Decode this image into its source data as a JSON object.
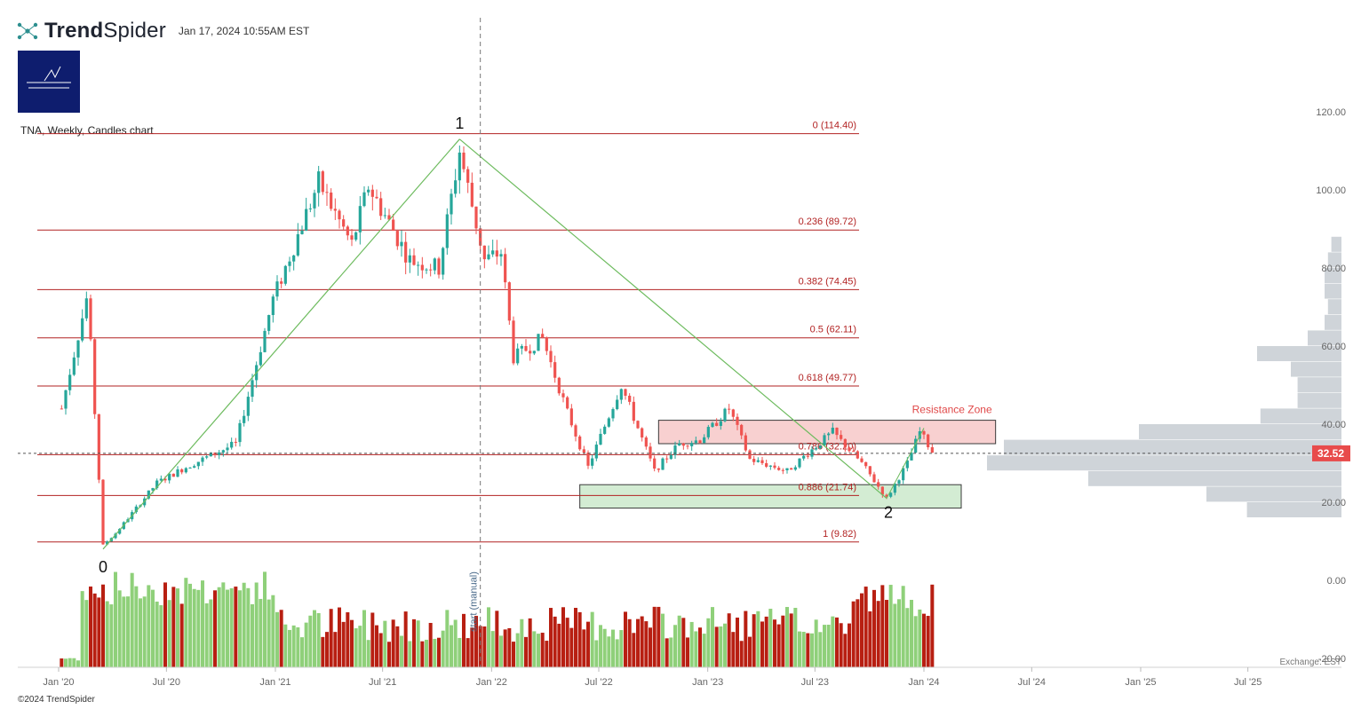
{
  "header": {
    "brand_primary": "Trend",
    "brand_secondary": "Spider",
    "timestamp": "Jan 17, 2024 10:55AM EST",
    "logo_icon": "network-dots-icon"
  },
  "badge": {
    "color": "#0e1d6e"
  },
  "copyright": "©2024 TrendSpider",
  "chart_data": {
    "type": "candlestick",
    "title": "TNA, Weekly, Candles chart",
    "symbol": "TNA",
    "interval": "Weekly",
    "y_axis": {
      "ticks": [
        "120.00",
        "100.00",
        "80.00",
        "60.00",
        "40.00",
        "20.00",
        "0.00",
        "-20.00"
      ],
      "range": [
        -20,
        127
      ]
    },
    "x_axis": {
      "ticks": [
        "Jan '20",
        "Jul '20",
        "Jan '21",
        "Jul '21",
        "Jan '22",
        "Jul '22",
        "Jan '23",
        "Jul '23",
        "Jan '24",
        "Jul '24",
        "Jan '25",
        "Jul '25"
      ]
    },
    "current_price": {
      "value": 32.52,
      "label": "32.52",
      "color": "#e84b4b"
    },
    "fib_levels": [
      {
        "ratio": "0",
        "price": 114.4,
        "label": "0 (114.40)"
      },
      {
        "ratio": "0.236",
        "price": 89.72,
        "label": "0.236 (89.72)"
      },
      {
        "ratio": "0.382",
        "price": 74.45,
        "label": "0.382 (74.45)"
      },
      {
        "ratio": "0.5",
        "price": 62.11,
        "label": "0.5 (62.11)"
      },
      {
        "ratio": "0.618",
        "price": 49.77,
        "label": "0.618 (49.77)"
      },
      {
        "ratio": "0.786",
        "price": 32.2,
        "label": "0.786 (32.20)"
      },
      {
        "ratio": "0.886",
        "price": 21.74,
        "label": "0.886 (21.74)"
      },
      {
        "ratio": "1",
        "price": 9.82,
        "label": "1 (9.82)"
      }
    ],
    "pivots": [
      {
        "label": "0",
        "date": "2020-03-16",
        "price": 8.0
      },
      {
        "label": "1",
        "date": "2021-11-08",
        "price": 113.0
      },
      {
        "label": "2",
        "date": "2023-10-30",
        "price": 21.0
      }
    ],
    "zones": [
      {
        "name": "Resistance Zone",
        "label": "Resistance Zone",
        "from": "2022-10-10",
        "to": "2024-05-01",
        "low": 35,
        "high": 41,
        "color": "#f8d0d0"
      },
      {
        "name": "support",
        "label": "",
        "from": "2022-05-30",
        "to": "2024-03-04",
        "low": 18.5,
        "high": 24.5,
        "color": "#d3ecd3"
      }
    ],
    "vertical_marker": {
      "date": "2021-12-13",
      "label": "start (manual)"
    },
    "exchange_label": "Exchange: EST",
    "volume_profile_levels": [
      {
        "price": 86,
        "size": 0.03
      },
      {
        "price": 82,
        "size": 0.04
      },
      {
        "price": 78,
        "size": 0.05
      },
      {
        "price": 74,
        "size": 0.05
      },
      {
        "price": 70,
        "size": 0.04
      },
      {
        "price": 66,
        "size": 0.05
      },
      {
        "price": 62,
        "size": 0.1
      },
      {
        "price": 58,
        "size": 0.25
      },
      {
        "price": 54,
        "size": 0.15
      },
      {
        "price": 50,
        "size": 0.13
      },
      {
        "price": 46,
        "size": 0.13
      },
      {
        "price": 42,
        "size": 0.24
      },
      {
        "price": 38,
        "size": 0.6
      },
      {
        "price": 34,
        "size": 1.0
      },
      {
        "price": 30,
        "size": 1.05
      },
      {
        "price": 26,
        "size": 0.75
      },
      {
        "price": 22,
        "size": 0.4
      },
      {
        "price": 18,
        "size": 0.28
      }
    ],
    "pattern_lines": [
      {
        "from": "0",
        "to": "1",
        "color": "#6dbb5e"
      },
      {
        "from": "1",
        "to": "2",
        "color": "#6dbb5e"
      }
    ]
  }
}
